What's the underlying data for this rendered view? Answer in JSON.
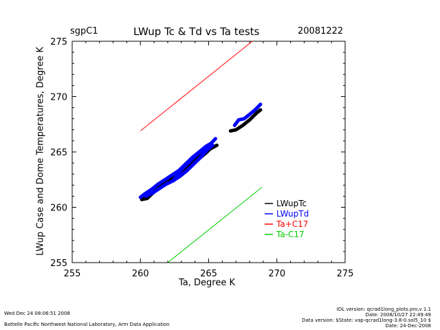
{
  "header": {
    "site": "sgpC1",
    "title": "LWup Tc & Td vs Ta tests",
    "date": "20081222"
  },
  "footer": {
    "timestamp": "Wed Dec 24 08:06:51 2008",
    "organization": "Battelle Pacific Northwest National Laboratory, Arm Data Application",
    "idl_version": "IDL version: qcrad1long_plots.pro,v 1.1",
    "idl_date": "Date: 2008/10/27 22:49:49",
    "data_version": "Data version: $State: vap-qcrad1long-3.8-0.sol5_10 $",
    "data_date": "Date: 24-Dec-2008"
  },
  "chart_data": {
    "type": "scatter",
    "title": "LWup Tc & Td vs Ta tests",
    "xlabel": "Ta, Degree K",
    "ylabel": "LWup Case and Dome Temperatures, Degree K",
    "xlim": [
      255,
      275
    ],
    "ylim": [
      255,
      275
    ],
    "xticks": [
      255,
      260,
      265,
      270,
      275
    ],
    "yticks": [
      255,
      260,
      265,
      270,
      275
    ],
    "grid": false,
    "legend_position": "lower-right inside",
    "series": [
      {
        "name": "LWupTc",
        "color": "#000000",
        "style": "points",
        "segments": [
          [
            [
              260.1,
              260.7
            ],
            [
              260.5,
              260.8
            ],
            [
              261.0,
              261.4
            ],
            [
              261.5,
              261.9
            ],
            [
              262.0,
              262.3
            ],
            [
              262.5,
              262.7
            ],
            [
              263.0,
              263.1
            ],
            [
              263.5,
              263.6
            ],
            [
              264.0,
              264.3
            ],
            [
              264.5,
              264.8
            ],
            [
              265.0,
              265.2
            ],
            [
              265.6,
              265.6
            ]
          ],
          [
            [
              260.3,
              260.9
            ],
            [
              260.8,
              261.2
            ],
            [
              261.3,
              261.7
            ],
            [
              261.8,
              262.2
            ],
            [
              262.3,
              262.6
            ],
            [
              262.8,
              262.9
            ],
            [
              263.3,
              263.4
            ],
            [
              263.8,
              263.9
            ],
            [
              264.3,
              264.4
            ],
            [
              264.8,
              264.9
            ],
            [
              265.2,
              265.4
            ]
          ],
          [
            [
              266.6,
              266.9
            ],
            [
              267.0,
              267.0
            ],
            [
              267.5,
              267.4
            ],
            [
              268.0,
              267.9
            ],
            [
              268.5,
              268.5
            ],
            [
              268.8,
              268.8
            ]
          ]
        ]
      },
      {
        "name": "LWupTd",
        "color": "#0000ff",
        "style": "points",
        "segments": [
          [
            [
              260.0,
              260.9
            ],
            [
              260.3,
              261.2
            ],
            [
              260.8,
              261.6
            ],
            [
              261.3,
              262.1
            ],
            [
              261.8,
              262.5
            ],
            [
              262.3,
              262.9
            ],
            [
              262.8,
              263.3
            ],
            [
              263.3,
              263.9
            ],
            [
              263.8,
              264.5
            ],
            [
              264.3,
              265.0
            ],
            [
              264.8,
              265.5
            ],
            [
              265.2,
              265.8
            ],
            [
              265.5,
              266.2
            ]
          ],
          [
            [
              260.4,
              261.0
            ],
            [
              260.9,
              261.3
            ],
            [
              261.4,
              261.7
            ],
            [
              261.9,
              262.1
            ],
            [
              262.4,
              262.4
            ],
            [
              262.9,
              262.8
            ],
            [
              263.4,
              263.3
            ],
            [
              263.9,
              263.9
            ],
            [
              264.4,
              264.5
            ],
            [
              264.9,
              265.2
            ],
            [
              265.3,
              265.6
            ]
          ],
          [
            [
              262.5,
              262.6
            ],
            [
              263.0,
              263.4
            ],
            [
              263.5,
              264.0
            ],
            [
              264.0,
              264.6
            ],
            [
              264.5,
              265.1
            ],
            [
              265.0,
              265.5
            ]
          ],
          [
            [
              266.9,
              267.4
            ],
            [
              267.2,
              267.9
            ],
            [
              267.6,
              268.0
            ],
            [
              268.0,
              268.4
            ],
            [
              268.4,
              268.8
            ],
            [
              268.8,
              269.3
            ]
          ]
        ]
      },
      {
        "name": "Ta+C17",
        "color": "#ff0000",
        "style": "line",
        "segments": [
          [
            [
              260.0,
              266.9
            ],
            [
              268.2,
              275.0
            ]
          ]
        ]
      },
      {
        "name": "Ta-C17",
        "color": "#00cc00",
        "style": "line",
        "segments": [
          [
            [
              262.0,
              255.0
            ],
            [
              268.9,
              261.8
            ]
          ]
        ]
      }
    ]
  }
}
